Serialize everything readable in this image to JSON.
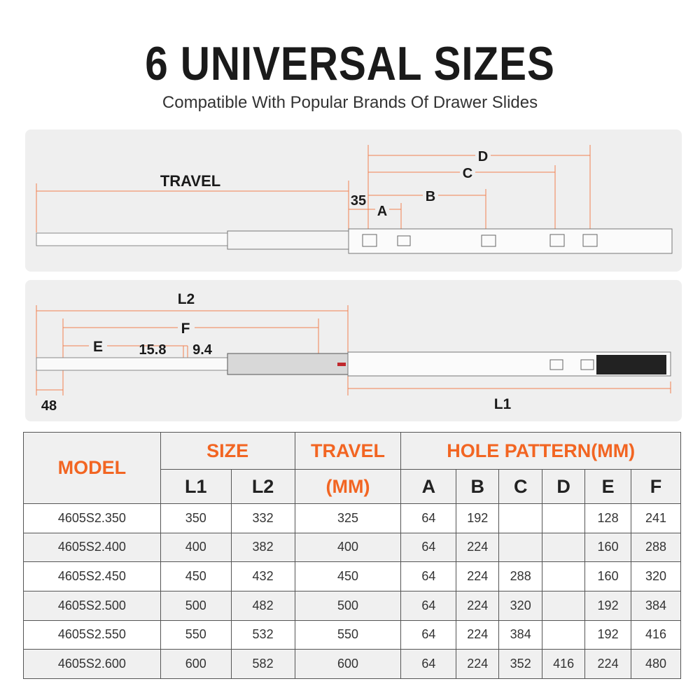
{
  "header": {
    "title": "6 UNIVERSAL SIZES",
    "subtitle": "Compatible With Popular Brands Of Drawer Slides"
  },
  "diagram_top": {
    "travel": "TRAVEL",
    "d35": "35",
    "a": "A",
    "b": "B",
    "c": "C",
    "d": "D"
  },
  "diagram_bottom": {
    "l2": "L2",
    "f": "F",
    "e": "E",
    "d158": "15.8",
    "d94": "9.4",
    "d48": "48",
    "l1": "L1"
  },
  "colors": {
    "accent": "#f26522",
    "dimension_line": "#f08050",
    "panel": "#efefef"
  },
  "table": {
    "headers": {
      "model": "MODEL",
      "size": "SIZE",
      "travel": "TRAVEL",
      "travel_unit": "(MM)",
      "hole_pattern": "HOLE PATTERN(MM)",
      "l1": "L1",
      "l2": "L2",
      "a": "A",
      "b": "B",
      "c": "C",
      "d": "D",
      "e": "E",
      "f": "F"
    },
    "rows": [
      [
        "4605S2.350",
        "350",
        "332",
        "325",
        "64",
        "192",
        "",
        "",
        "128",
        "241"
      ],
      [
        "4605S2.400",
        "400",
        "382",
        "400",
        "64",
        "224",
        "",
        "",
        "160",
        "288"
      ],
      [
        "4605S2.450",
        "450",
        "432",
        "450",
        "64",
        "224",
        "288",
        "",
        "160",
        "320"
      ],
      [
        "4605S2.500",
        "500",
        "482",
        "500",
        "64",
        "224",
        "320",
        "",
        "192",
        "384"
      ],
      [
        "4605S2.550",
        "550",
        "532",
        "550",
        "64",
        "224",
        "384",
        "",
        "192",
        "416"
      ],
      [
        "4605S2.600",
        "600",
        "582",
        "600",
        "64",
        "224",
        "352",
        "416",
        "224",
        "480"
      ]
    ]
  }
}
